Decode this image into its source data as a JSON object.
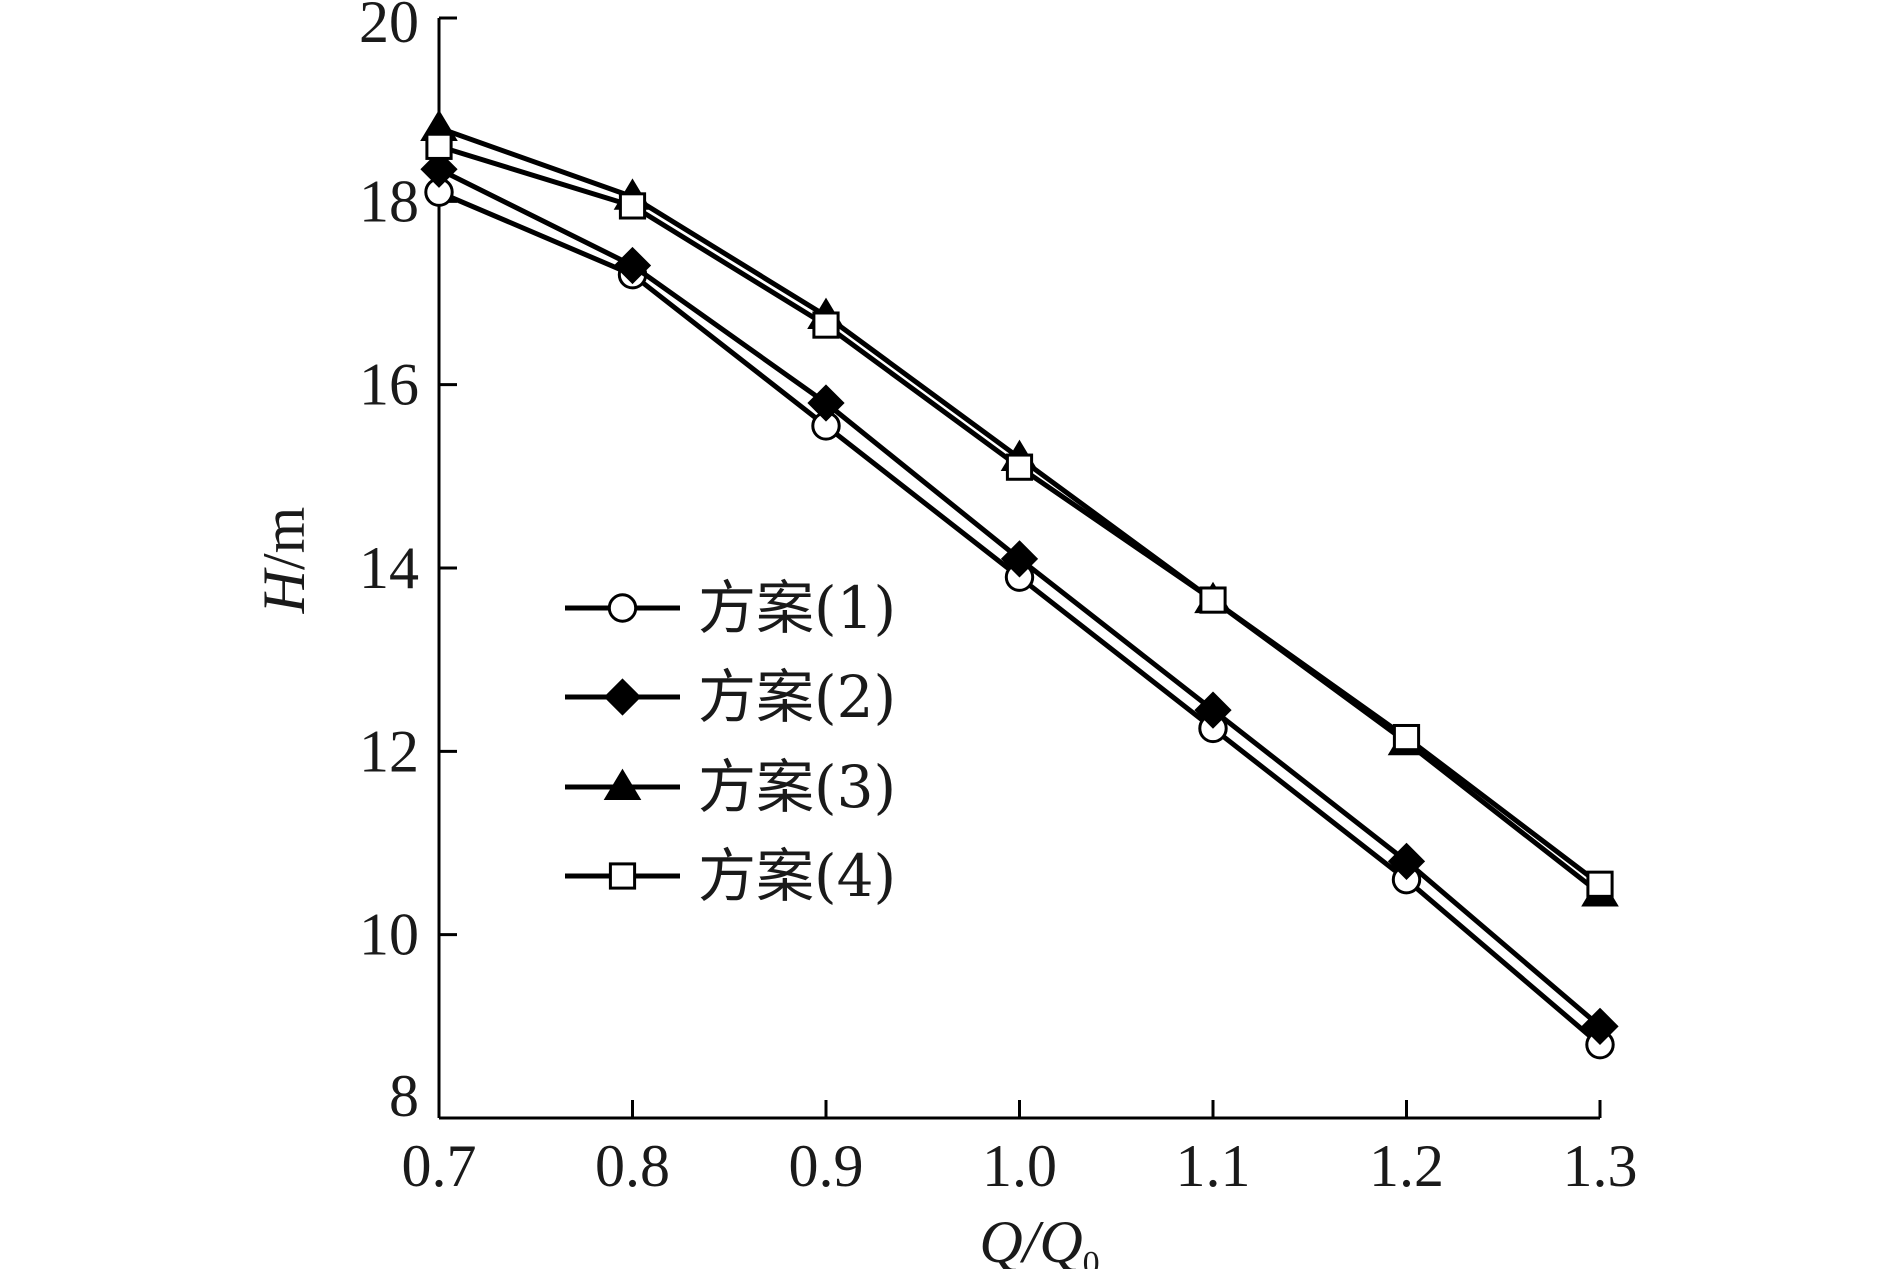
{
  "chart_data": {
    "type": "line",
    "xlabel": "Q/Q",
    "xlabel_sub": "0",
    "ylabel_italic": "H",
    "ylabel_unit": "/m",
    "xlim": [
      0.7,
      1.3
    ],
    "ylim": [
      8,
      20
    ],
    "xticks": [
      "0.7",
      "0.8",
      "0.9",
      "1.0",
      "1.1",
      "1.2",
      "1.3"
    ],
    "yticks": [
      "8",
      "10",
      "12",
      "14",
      "16",
      "18",
      "20"
    ],
    "grid": false,
    "legend_position": "center-left",
    "x": [
      0.7,
      0.8,
      0.9,
      1.0,
      1.1,
      1.2,
      1.3
    ],
    "series": [
      {
        "name": "方案(1)",
        "marker": "open-circle",
        "values": [
          18.1,
          17.2,
          15.55,
          13.9,
          12.25,
          10.6,
          8.8
        ]
      },
      {
        "name": "方案(2)",
        "marker": "filled-diamond",
        "values": [
          18.35,
          17.3,
          15.8,
          14.1,
          12.45,
          10.8,
          9.0
        ]
      },
      {
        "name": "方案(3)",
        "marker": "filled-triangle",
        "values": [
          18.8,
          18.05,
          16.75,
          15.2,
          13.65,
          12.1,
          10.45
        ]
      },
      {
        "name": "方案(4)",
        "marker": "open-square",
        "values": [
          18.6,
          17.95,
          16.65,
          15.1,
          13.65,
          12.15,
          10.55
        ]
      }
    ],
    "colors": {
      "line": "#000000",
      "text": "#1a1a1a",
      "marker_fill_open": "#ffffff",
      "marker_fill_solid": "#000000"
    }
  }
}
